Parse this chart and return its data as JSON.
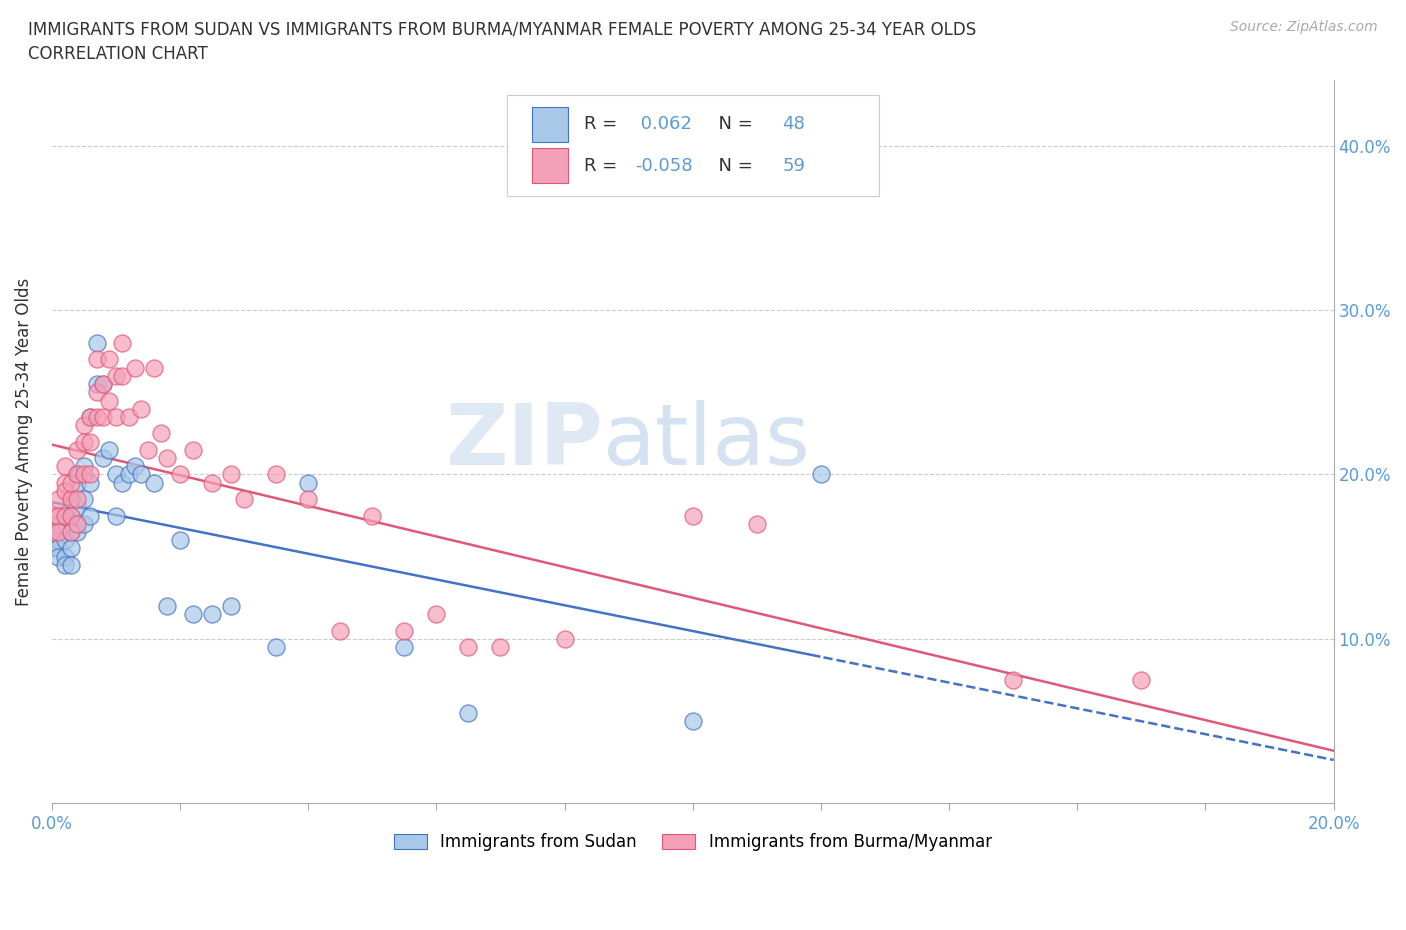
{
  "title_line1": "IMMIGRANTS FROM SUDAN VS IMMIGRANTS FROM BURMA/MYANMAR FEMALE POVERTY AMONG 25-34 YEAR OLDS",
  "title_line2": "CORRELATION CHART",
  "source": "Source: ZipAtlas.com",
  "ylabel": "Female Poverty Among 25-34 Year Olds",
  "xlim": [
    0.0,
    0.2
  ],
  "ylim": [
    0.0,
    0.44
  ],
  "sudan_color": "#a8c8e8",
  "burma_color": "#f4a0b8",
  "sudan_line_color": "#4472c4",
  "burma_line_color": "#e05878",
  "sudan_R": 0.062,
  "sudan_N": 48,
  "burma_R": -0.058,
  "burma_N": 59,
  "watermark_zip": "ZIP",
  "watermark_atlas": "atlas",
  "legend_label_sudan": "Immigrants from Sudan",
  "legend_label_burma": "Immigrants from Burma/Myanmar",
  "sudan_x": [
    0.0,
    0.0,
    0.001,
    0.001,
    0.001,
    0.001,
    0.002,
    0.002,
    0.002,
    0.002,
    0.003,
    0.003,
    0.003,
    0.003,
    0.003,
    0.004,
    0.004,
    0.004,
    0.004,
    0.005,
    0.005,
    0.005,
    0.006,
    0.006,
    0.006,
    0.007,
    0.007,
    0.008,
    0.008,
    0.009,
    0.01,
    0.01,
    0.011,
    0.012,
    0.013,
    0.014,
    0.016,
    0.018,
    0.02,
    0.022,
    0.025,
    0.028,
    0.035,
    0.04,
    0.055,
    0.065,
    0.1,
    0.12
  ],
  "sudan_y": [
    0.155,
    0.165,
    0.16,
    0.17,
    0.155,
    0.15,
    0.175,
    0.16,
    0.15,
    0.145,
    0.165,
    0.175,
    0.185,
    0.155,
    0.145,
    0.2,
    0.195,
    0.18,
    0.165,
    0.205,
    0.185,
    0.17,
    0.195,
    0.175,
    0.235,
    0.28,
    0.255,
    0.255,
    0.21,
    0.215,
    0.2,
    0.175,
    0.195,
    0.2,
    0.205,
    0.2,
    0.195,
    0.12,
    0.16,
    0.115,
    0.115,
    0.12,
    0.095,
    0.195,
    0.095,
    0.055,
    0.05,
    0.2
  ],
  "burma_x": [
    0.0,
    0.0,
    0.001,
    0.001,
    0.001,
    0.002,
    0.002,
    0.002,
    0.002,
    0.003,
    0.003,
    0.003,
    0.003,
    0.004,
    0.004,
    0.004,
    0.004,
    0.005,
    0.005,
    0.005,
    0.006,
    0.006,
    0.006,
    0.007,
    0.007,
    0.007,
    0.008,
    0.008,
    0.009,
    0.009,
    0.01,
    0.01,
    0.011,
    0.011,
    0.012,
    0.013,
    0.014,
    0.015,
    0.016,
    0.017,
    0.018,
    0.02,
    0.022,
    0.025,
    0.028,
    0.03,
    0.035,
    0.04,
    0.045,
    0.05,
    0.055,
    0.06,
    0.065,
    0.07,
    0.08,
    0.1,
    0.11,
    0.15,
    0.17
  ],
  "burma_y": [
    0.175,
    0.165,
    0.175,
    0.185,
    0.165,
    0.195,
    0.205,
    0.19,
    0.175,
    0.185,
    0.195,
    0.175,
    0.165,
    0.215,
    0.2,
    0.185,
    0.17,
    0.23,
    0.22,
    0.2,
    0.235,
    0.22,
    0.2,
    0.27,
    0.25,
    0.235,
    0.255,
    0.235,
    0.27,
    0.245,
    0.26,
    0.235,
    0.28,
    0.26,
    0.235,
    0.265,
    0.24,
    0.215,
    0.265,
    0.225,
    0.21,
    0.2,
    0.215,
    0.195,
    0.2,
    0.185,
    0.2,
    0.185,
    0.105,
    0.175,
    0.105,
    0.115,
    0.095,
    0.095,
    0.1,
    0.175,
    0.17,
    0.075,
    0.075
  ]
}
